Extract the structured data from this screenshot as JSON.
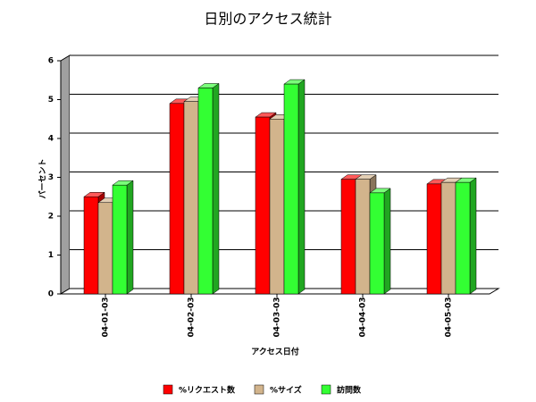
{
  "chart_data": {
    "type": "bar3d",
    "title": "日別のアクセス統計",
    "x_label": "アクセス日付",
    "y_label": "パーセント",
    "categories": [
      "04-01-03",
      "04-02-03",
      "04-03-03",
      "04-04-03",
      "04-05-03"
    ],
    "series": [
      {
        "name": "%リクエスト数",
        "color": "#ff0000",
        "values": [
          2.5,
          4.9,
          4.55,
          2.95,
          2.83
        ]
      },
      {
        "name": "%サイズ",
        "color": "#d2b48c",
        "values": [
          2.35,
          4.95,
          4.5,
          2.95,
          2.87
        ]
      },
      {
        "name": "訪問数",
        "color": "#33ff33",
        "values": [
          2.8,
          5.3,
          5.4,
          2.6,
          2.87
        ]
      }
    ],
    "ylim": [
      0,
      6
    ],
    "yticks": [
      0,
      1,
      2,
      3,
      4,
      5,
      6
    ],
    "grid": true,
    "legend": "bottom"
  }
}
